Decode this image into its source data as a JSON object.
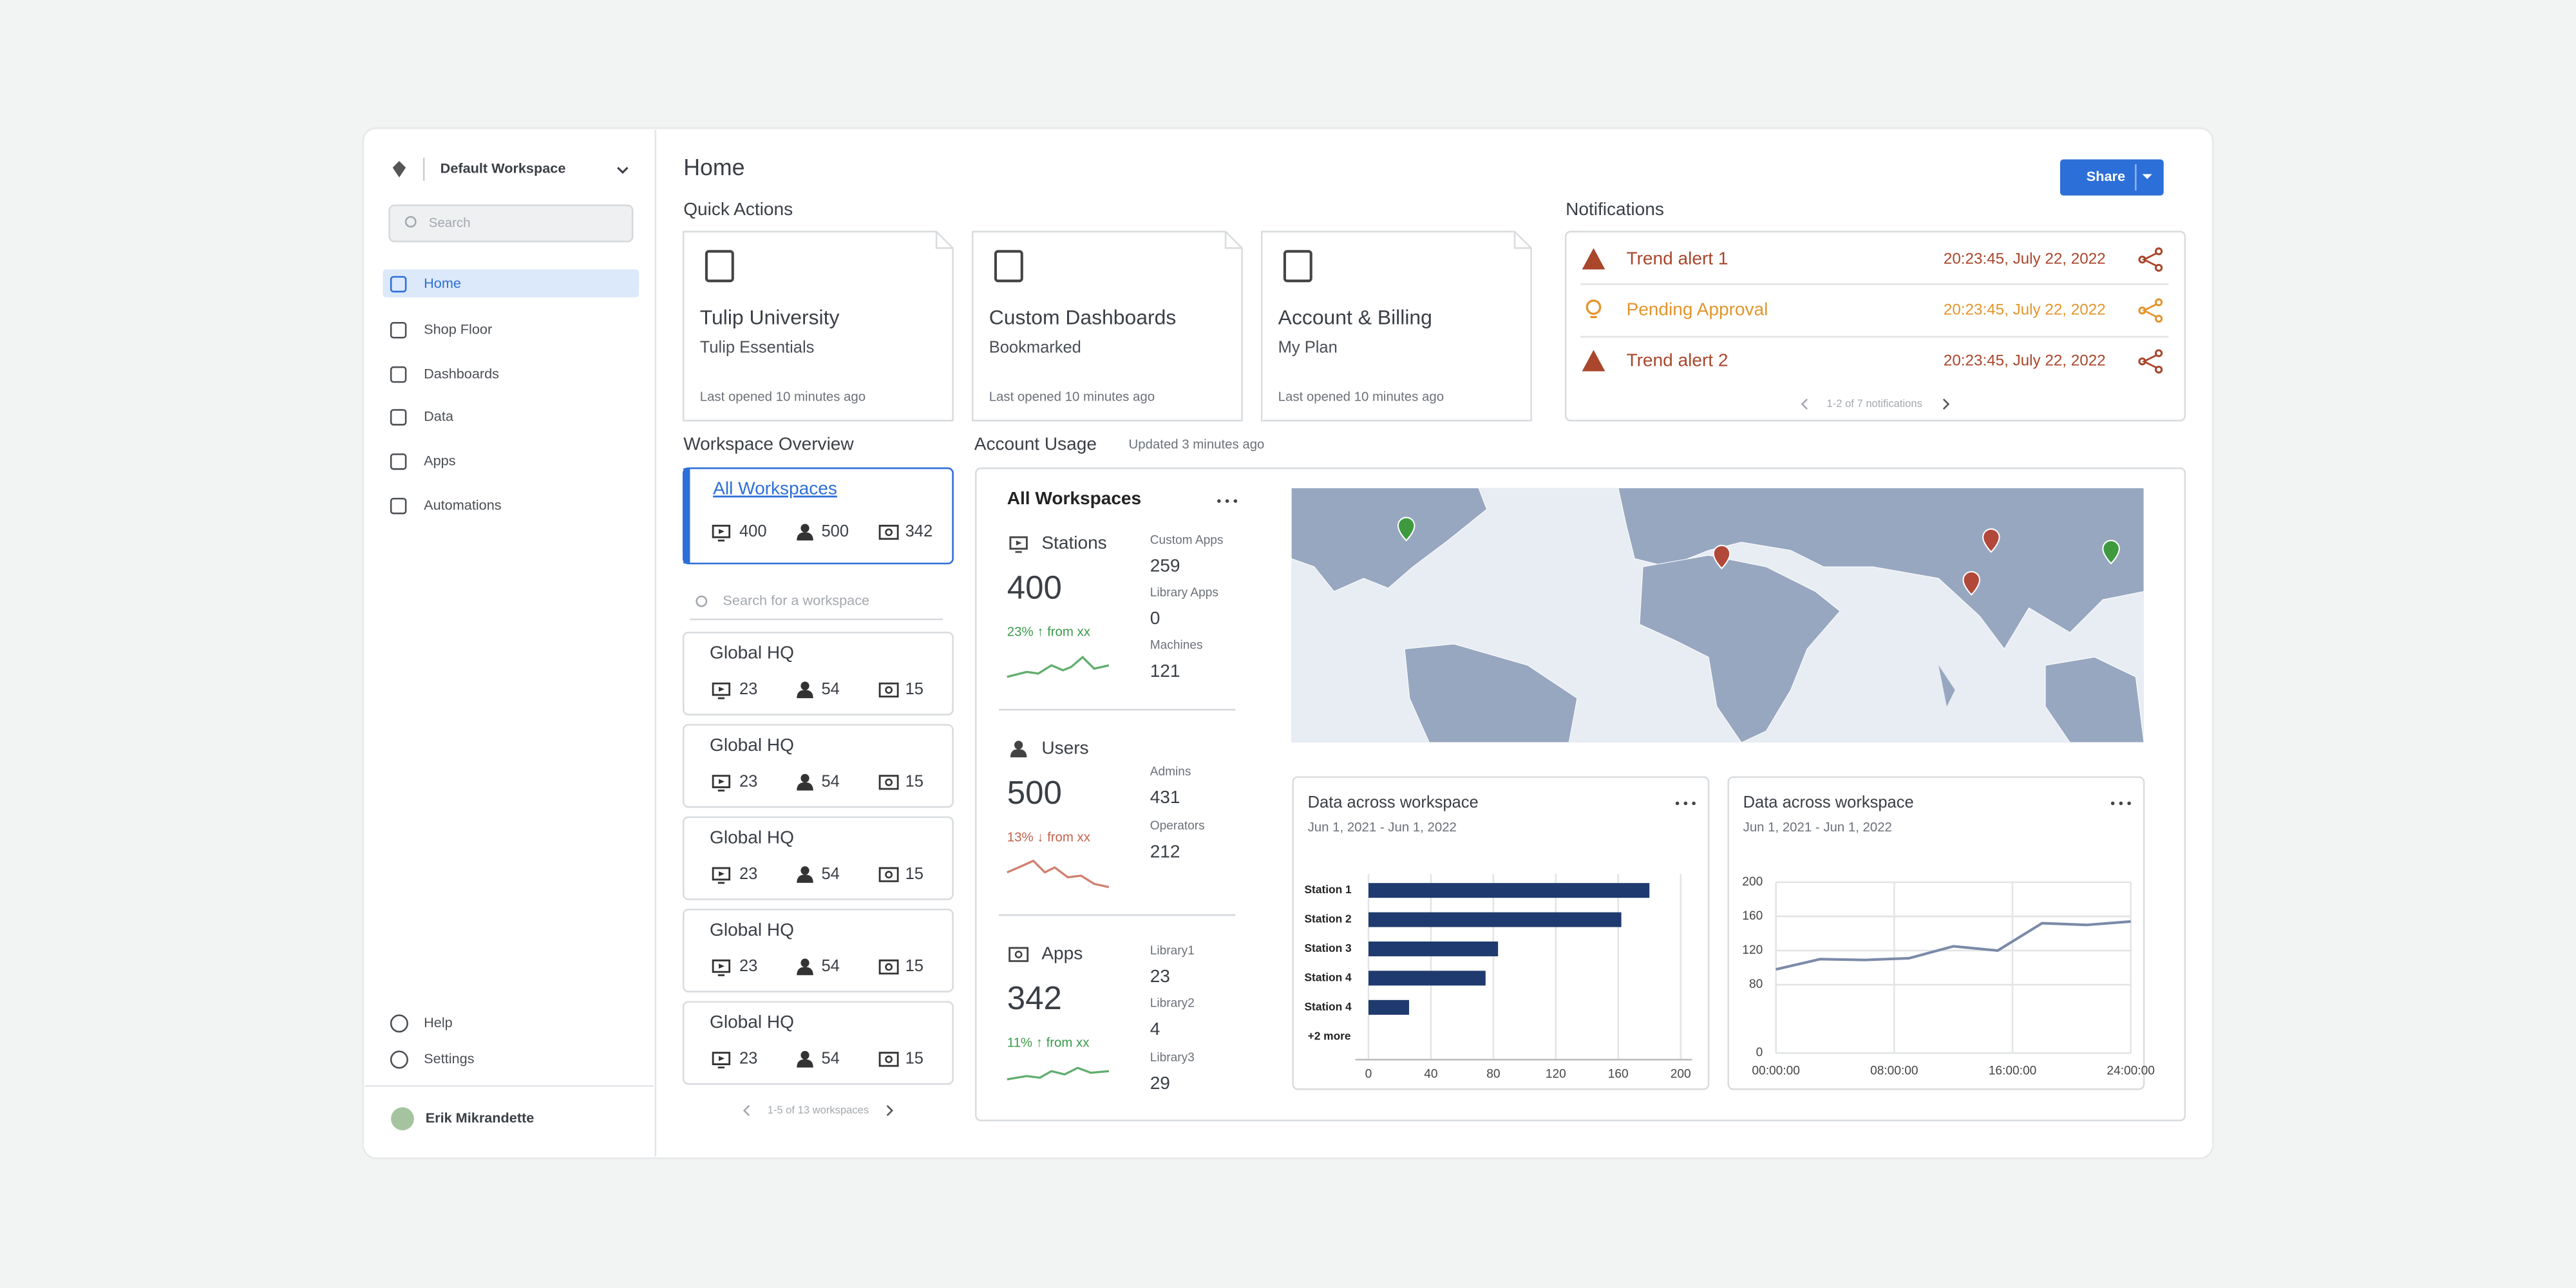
{
  "sidebar": {
    "workspace": "Default Workspace",
    "search": "Search",
    "nav": [
      "Home",
      "Shop Floor",
      "Dashboards",
      "Data",
      "Apps",
      "Automations"
    ],
    "footer_nav": [
      "Help",
      "Settings"
    ],
    "user": "Erik Mikrandette"
  },
  "header": {
    "title": "Home",
    "share": "Share"
  },
  "quick_actions": {
    "title": "Quick Actions",
    "cards": [
      {
        "title": "Tulip University",
        "subtitle": "Tulip Essentials",
        "meta": "Last opened 10 minutes ago"
      },
      {
        "title": "Custom Dashboards",
        "subtitle": "Bookmarked",
        "meta": "Last opened 10 minutes ago"
      },
      {
        "title": "Account & Billing",
        "subtitle": "My Plan",
        "meta": "Last opened 10 minutes ago"
      }
    ]
  },
  "notifications": {
    "title": "Notifications",
    "items": [
      {
        "label": "Trend alert 1",
        "time": "20:23:45, July 22, 2022",
        "color": "#a9462b"
      },
      {
        "label": "Pending Approval",
        "time": "20:23:45, July 22, 2022",
        "color": "#e3952c"
      },
      {
        "label": "Trend alert 2",
        "time": "20:23:45, July 22, 2022",
        "color": "#a9462b"
      }
    ],
    "pager": "1-2 of 7 notifications"
  },
  "workspace_overview": {
    "title": "Workspace Overview",
    "all": {
      "name": "All Workspaces",
      "stations": 400,
      "users": 500,
      "apps": 342
    },
    "search": "Search for a workspace",
    "items": [
      {
        "name": "Global HQ",
        "stations": 23,
        "users": 54,
        "apps": 15
      },
      {
        "name": "Global HQ",
        "stations": 23,
        "users": 54,
        "apps": 15
      },
      {
        "name": "Global HQ",
        "stations": 23,
        "users": 54,
        "apps": 15
      },
      {
        "name": "Global HQ",
        "stations": 23,
        "users": 54,
        "apps": 15
      },
      {
        "name": "Global HQ",
        "stations": 23,
        "users": 54,
        "apps": 15
      }
    ],
    "pager": "1-5 of 13 workspaces"
  },
  "account_usage": {
    "title": "Account Usage",
    "updated": "Updated 3 minutes ago",
    "heading": "All Workspaces",
    "sections": [
      {
        "name": "Stations",
        "value": 400,
        "change": "23% ↑ from xx",
        "trend_color": "#3a9a4a",
        "details": [
          {
            "label": "Custom Apps",
            "value": 259
          },
          {
            "label": "Library Apps",
            "value": 0
          },
          {
            "label": "Machines",
            "value": 121
          }
        ]
      },
      {
        "name": "Users",
        "value": 500,
        "change": "13% ↓ from xx",
        "trend_color": "#c4604a",
        "details": [
          {
            "label": "Admins",
            "value": 431
          },
          {
            "label": "Operators",
            "value": 212
          }
        ]
      },
      {
        "name": "Apps",
        "value": 342,
        "change": "11% ↑ from xx",
        "trend_color": "#3a9a4a",
        "details": [
          {
            "label": "Library1",
            "value": 23
          },
          {
            "label": "Library2",
            "value": 4
          },
          {
            "label": "Library3",
            "value": 29
          }
        ]
      }
    ]
  },
  "chart_data": [
    {
      "type": "bar",
      "orientation": "horizontal",
      "title": "Data across workspace",
      "subtitle": "Jun 1, 2021 - Jun 1, 2022",
      "categories": [
        "Station 1",
        "Station 2",
        "Station 3",
        "Station 4",
        "Station 4"
      ],
      "values": [
        180,
        162,
        83,
        75,
        26
      ],
      "more": "+2 more",
      "color": "#1f3a6e",
      "xlim": [
        0,
        200
      ],
      "xticks": [
        0,
        40,
        80,
        120,
        160,
        200
      ],
      "grid": true
    },
    {
      "type": "line",
      "title": "Data across workspace",
      "subtitle": "Jun 1, 2021 - Jun 1, 2022",
      "x": [
        0,
        3,
        6,
        9,
        12,
        15,
        18,
        21,
        24
      ],
      "values": [
        98,
        110,
        109,
        111,
        125,
        120,
        152,
        150,
        154
      ],
      "color": "#7b8aa8",
      "xlim": [
        0,
        24
      ],
      "xticks": [
        {
          "value": 0,
          "label": "00:00:00"
        },
        {
          "value": 8,
          "label": "08:00:00"
        },
        {
          "value": 16,
          "label": "16:00:00"
        },
        {
          "value": 24,
          "label": "24:00:00"
        }
      ],
      "ylim": [
        0,
        200
      ],
      "yticks": [
        0,
        80,
        120,
        160,
        200
      ],
      "grid": true
    }
  ]
}
